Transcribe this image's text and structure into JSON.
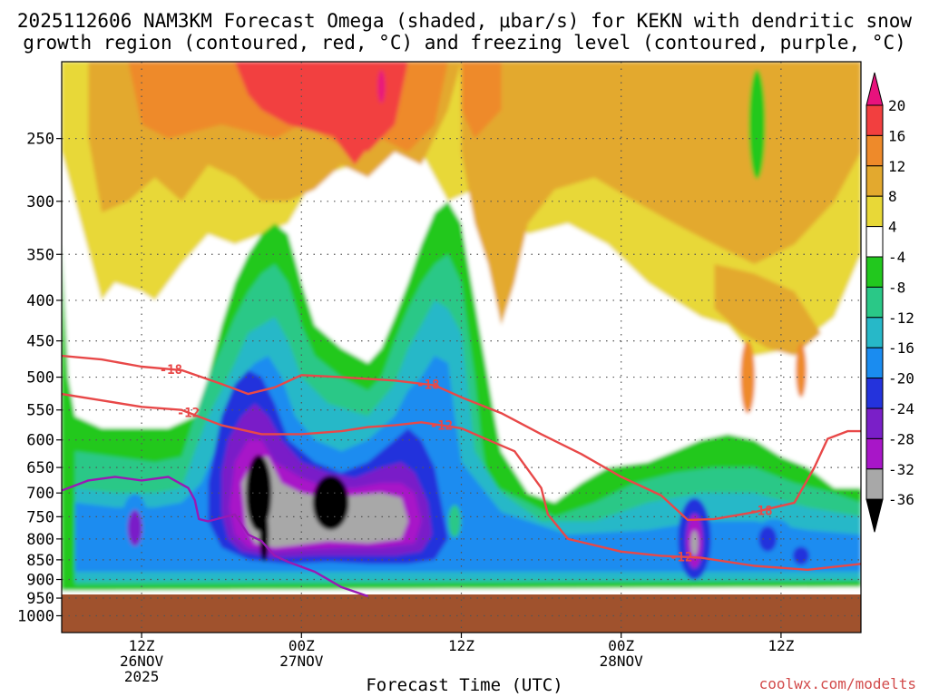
{
  "title": {
    "line1": "2025112606 NAM3KM Forecast Omega (shaded, μbar/s) for KEKN with dendritic snow",
    "line2": "growth region (contoured, red, °C) and freezing level (contoured, purple, °C)"
  },
  "credit": "coolwx.com/modelts",
  "chart_data": {
    "type": "heatmap",
    "xlabel": "Forecast Time (UTC)",
    "ylabel": "",
    "x_range_hours": [
      0,
      60
    ],
    "x_ticks": [
      {
        "hour": 6,
        "lines": [
          "12Z",
          "26NOV",
          "2025"
        ]
      },
      {
        "hour": 18,
        "lines": [
          "00Z",
          "27NOV"
        ]
      },
      {
        "hour": 30,
        "lines": [
          "12Z"
        ]
      },
      {
        "hour": 42,
        "lines": [
          "00Z",
          "28NOV"
        ]
      },
      {
        "hour": 54,
        "lines": [
          "12Z"
        ]
      }
    ],
    "y_ticks_hpa": [
      250,
      300,
      350,
      400,
      450,
      500,
      550,
      600,
      650,
      700,
      750,
      800,
      850,
      900,
      950,
      1000
    ],
    "y_range_hpa": [
      200,
      1050
    ],
    "y_scale": "log-pressure",
    "grid": true,
    "ground_level_hpa": 940,
    "colorbar": {
      "labels": [
        "20",
        "16",
        "12",
        "8",
        "4",
        "-4",
        "-8",
        "-12",
        "-16",
        "-20",
        "-24",
        "-28",
        "-32",
        "-36"
      ],
      "colors": [
        "#e8127d",
        "#f23f3f",
        "#ee8a2a",
        "#e3a92e",
        "#e8d837",
        "#ffffff",
        "#22c81e",
        "#2ac887",
        "#27b8c8",
        "#1a8cf0",
        "#2433dc",
        "#7a1fc8",
        "#a816c8",
        "#a8a8a8",
        "#000000"
      ]
    },
    "contours": [
      {
        "label": "-18",
        "color": "#e84848",
        "points": [
          [
            0,
            470
          ],
          [
            3,
            475
          ],
          [
            6,
            485
          ],
          [
            9,
            490
          ],
          [
            12,
            510
          ],
          [
            14,
            525
          ],
          [
            16,
            515
          ],
          [
            18,
            497
          ],
          [
            21,
            500
          ],
          [
            25,
            505
          ],
          [
            28,
            512
          ],
          [
            30,
            530
          ],
          [
            33,
            555
          ],
          [
            36,
            590
          ],
          [
            39,
            625
          ],
          [
            42,
            668
          ],
          [
            45,
            705
          ],
          [
            47,
            757
          ],
          [
            49,
            755
          ],
          [
            52,
            740
          ],
          [
            55,
            720
          ],
          [
            56.5,
            650
          ],
          [
            57.5,
            598
          ],
          [
            59,
            585
          ],
          [
            60,
            585
          ]
        ],
        "label_hours": [
          8.2,
          27.5,
          52.5
        ]
      },
      {
        "label": "-12",
        "color": "#e84848",
        "points": [
          [
            0,
            525
          ],
          [
            3,
            535
          ],
          [
            6,
            545
          ],
          [
            9,
            550
          ],
          [
            12,
            575
          ],
          [
            15,
            590
          ],
          [
            18,
            590
          ],
          [
            21,
            585
          ],
          [
            23,
            578
          ],
          [
            25,
            575
          ],
          [
            27,
            570
          ],
          [
            28.5,
            575
          ],
          [
            30,
            580
          ],
          [
            32,
            600
          ],
          [
            34,
            620
          ],
          [
            36,
            690
          ],
          [
            36.5,
            745
          ],
          [
            38,
            800
          ],
          [
            42,
            830
          ],
          [
            45,
            840
          ],
          [
            48,
            845
          ],
          [
            52,
            865
          ],
          [
            56,
            875
          ],
          [
            60,
            860
          ]
        ],
        "label_hours": [
          9.5,
          28.5,
          46.5
        ]
      },
      {
        "label": "",
        "color": "#9919b4",
        "points": [
          [
            0,
            695
          ],
          [
            2,
            675
          ],
          [
            4,
            668
          ],
          [
            6,
            675
          ],
          [
            8,
            668
          ],
          [
            9.5,
            690
          ],
          [
            10,
            715
          ],
          [
            10.3,
            755
          ],
          [
            11,
            760
          ],
          [
            13,
            745
          ],
          [
            14,
            790
          ],
          [
            15,
            805
          ],
          [
            16,
            840
          ],
          [
            17,
            855
          ],
          [
            19,
            880
          ],
          [
            21,
            920
          ],
          [
            23,
            945
          ]
        ],
        "label_hours": []
      }
    ]
  }
}
